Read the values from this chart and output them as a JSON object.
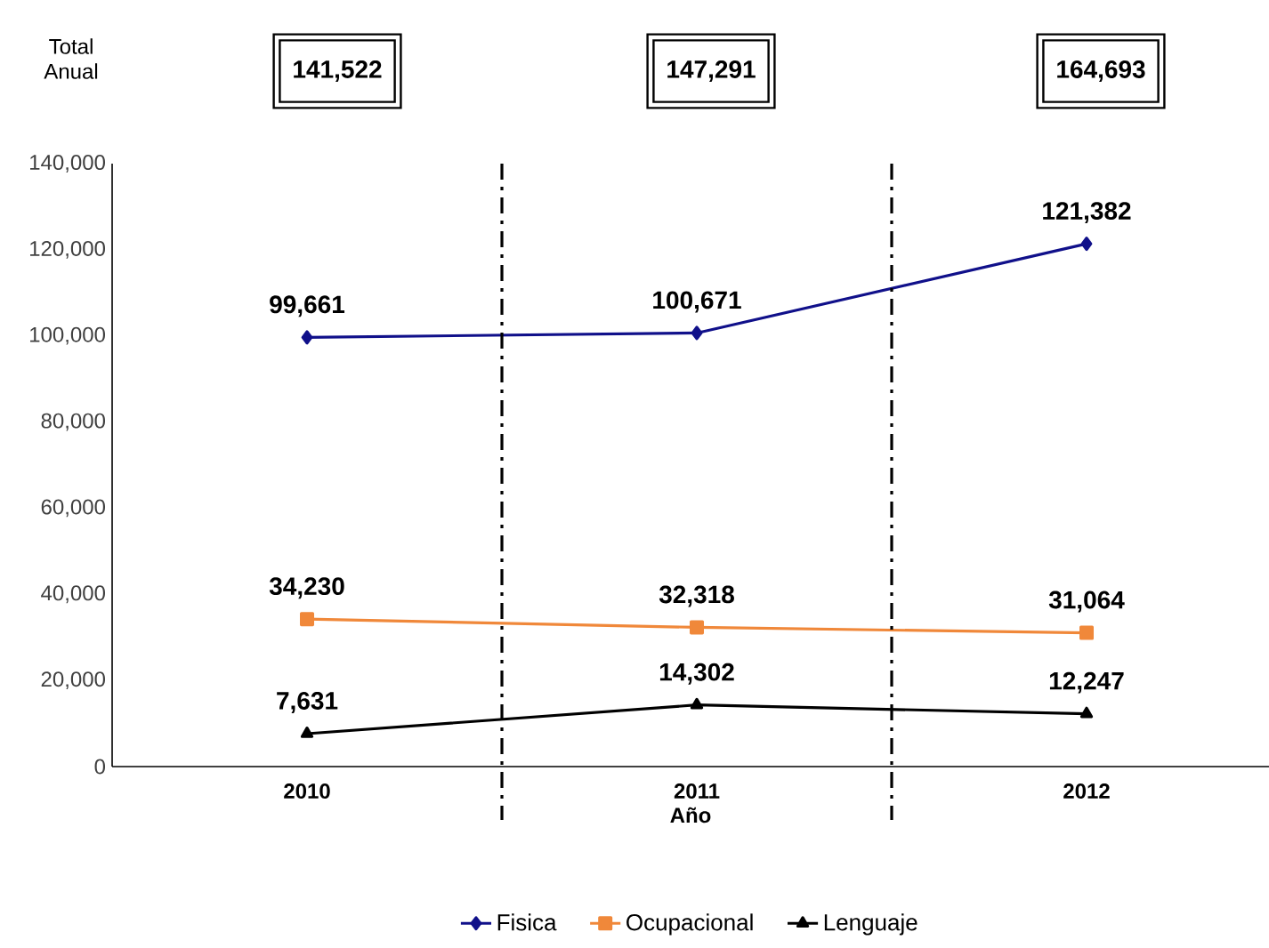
{
  "chart_data": {
    "type": "line",
    "xlabel": "Año",
    "categories": [
      "2010",
      "2011",
      "2012"
    ],
    "series": [
      {
        "name": "Fisica",
        "color": "#10108a",
        "marker": "diamond",
        "values": [
          99661,
          100671,
          121382
        ],
        "value_labels": [
          "99,661",
          "100,671",
          "121,382"
        ]
      },
      {
        "name": "Ocupacional",
        "color": "#f0883a",
        "marker": "square",
        "values": [
          34230,
          32318,
          31064
        ],
        "value_labels": [
          "34,230",
          "32,318",
          "31,064"
        ]
      },
      {
        "name": "Lenguaje",
        "color": "#000000",
        "marker": "triangle",
        "values": [
          7631,
          14302,
          12247
        ],
        "value_labels": [
          "7,631",
          "14,302",
          "12,247"
        ]
      }
    ],
    "totals": [
      "141,522",
      "147,291",
      "164,693"
    ],
    "annotations": [
      "Total Anual"
    ],
    "ylim": [
      0,
      140000
    ],
    "yticks": [
      {
        "value": 0,
        "label": "0"
      },
      {
        "value": 20000,
        "label": "20,000"
      },
      {
        "value": 40000,
        "label": "40,000"
      },
      {
        "value": 60000,
        "label": "60,000"
      },
      {
        "value": 80000,
        "label": "80,000"
      },
      {
        "value": 100000,
        "label": "100,000"
      },
      {
        "value": 120000,
        "label": "120,000"
      },
      {
        "value": 140000,
        "label": "140,000"
      }
    ],
    "legend": "bottom"
  }
}
